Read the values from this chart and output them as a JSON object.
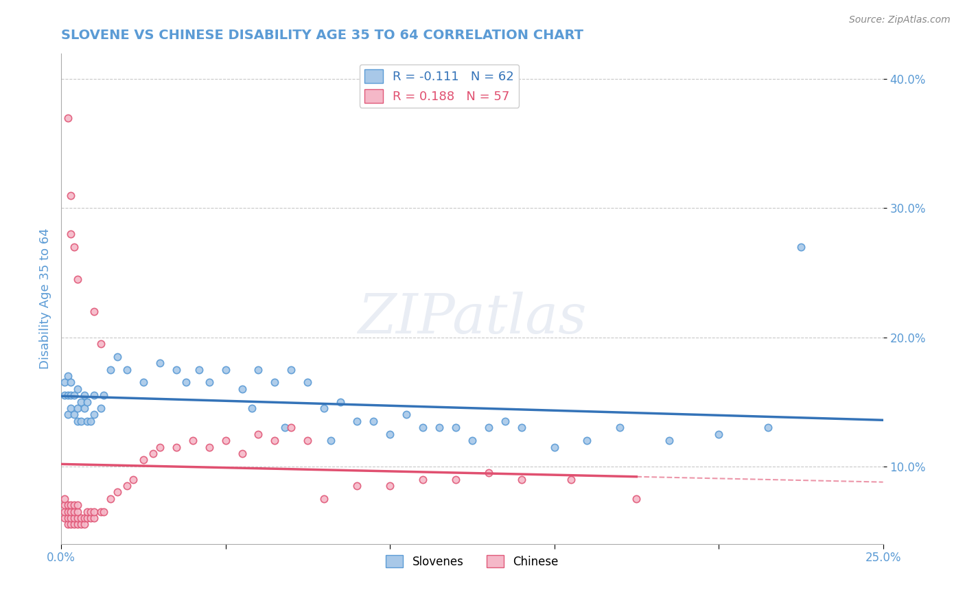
{
  "title": "SLOVENE VS CHINESE DISABILITY AGE 35 TO 64 CORRELATION CHART",
  "source": "Source: ZipAtlas.com",
  "ylabel": "Disability Age 35 to 64",
  "xlim": [
    0.0,
    0.25
  ],
  "ylim": [
    0.04,
    0.42
  ],
  "ytick_positions": [
    0.1,
    0.2,
    0.3,
    0.4
  ],
  "ytick_labels": [
    "10.0%",
    "20.0%",
    "30.0%",
    "40.0%"
  ],
  "slovene_color": "#a8c8e8",
  "slovene_edge_color": "#5b9bd5",
  "chinese_color": "#f5b8c8",
  "chinese_edge_color": "#e05878",
  "slovene_line_color": "#3473b8",
  "chinese_line_color": "#e05070",
  "r_slovene": -0.111,
  "n_slovene": 62,
  "r_chinese": 0.188,
  "n_chinese": 57,
  "legend_label_slovene": "Slovenes",
  "legend_label_chinese": "Chinese",
  "slovene_scatter_x": [
    0.001,
    0.001,
    0.002,
    0.002,
    0.002,
    0.003,
    0.003,
    0.003,
    0.004,
    0.004,
    0.005,
    0.005,
    0.005,
    0.006,
    0.006,
    0.007,
    0.007,
    0.008,
    0.008,
    0.009,
    0.01,
    0.01,
    0.012,
    0.013,
    0.015,
    0.017,
    0.02,
    0.025,
    0.03,
    0.035,
    0.038,
    0.042,
    0.045,
    0.05,
    0.055,
    0.058,
    0.06,
    0.065,
    0.068,
    0.07,
    0.075,
    0.08,
    0.082,
    0.085,
    0.09,
    0.095,
    0.1,
    0.105,
    0.11,
    0.115,
    0.12,
    0.125,
    0.13,
    0.135,
    0.14,
    0.15,
    0.16,
    0.17,
    0.185,
    0.2,
    0.215,
    0.225
  ],
  "slovene_scatter_y": [
    0.155,
    0.165,
    0.14,
    0.155,
    0.17,
    0.145,
    0.155,
    0.165,
    0.14,
    0.155,
    0.135,
    0.145,
    0.16,
    0.135,
    0.15,
    0.145,
    0.155,
    0.135,
    0.15,
    0.135,
    0.14,
    0.155,
    0.145,
    0.155,
    0.175,
    0.185,
    0.175,
    0.165,
    0.18,
    0.175,
    0.165,
    0.175,
    0.165,
    0.175,
    0.16,
    0.145,
    0.175,
    0.165,
    0.13,
    0.175,
    0.165,
    0.145,
    0.12,
    0.15,
    0.135,
    0.135,
    0.125,
    0.14,
    0.13,
    0.13,
    0.13,
    0.12,
    0.13,
    0.135,
    0.13,
    0.115,
    0.12,
    0.13,
    0.12,
    0.125,
    0.13,
    0.27
  ],
  "chinese_scatter_x": [
    0.001,
    0.001,
    0.001,
    0.001,
    0.002,
    0.002,
    0.002,
    0.002,
    0.003,
    0.003,
    0.003,
    0.003,
    0.004,
    0.004,
    0.004,
    0.004,
    0.005,
    0.005,
    0.005,
    0.005,
    0.006,
    0.006,
    0.007,
    0.007,
    0.008,
    0.008,
    0.009,
    0.009,
    0.01,
    0.01,
    0.012,
    0.013,
    0.015,
    0.017,
    0.02,
    0.022,
    0.025,
    0.028,
    0.03,
    0.035,
    0.04,
    0.045,
    0.05,
    0.055,
    0.06,
    0.065,
    0.07,
    0.075,
    0.08,
    0.09,
    0.1,
    0.11,
    0.12,
    0.13,
    0.14,
    0.155,
    0.175
  ],
  "chinese_scatter_y": [
    0.06,
    0.065,
    0.07,
    0.075,
    0.055,
    0.06,
    0.065,
    0.07,
    0.055,
    0.06,
    0.065,
    0.07,
    0.055,
    0.06,
    0.065,
    0.07,
    0.055,
    0.06,
    0.065,
    0.07,
    0.055,
    0.06,
    0.055,
    0.06,
    0.06,
    0.065,
    0.06,
    0.065,
    0.06,
    0.065,
    0.065,
    0.065,
    0.075,
    0.08,
    0.085,
    0.09,
    0.105,
    0.11,
    0.115,
    0.115,
    0.12,
    0.115,
    0.12,
    0.11,
    0.125,
    0.12,
    0.13,
    0.12,
    0.075,
    0.085,
    0.085,
    0.09,
    0.09,
    0.095,
    0.09,
    0.09,
    0.075
  ],
  "chinese_high_x": [
    0.002,
    0.003,
    0.003,
    0.004,
    0.005,
    0.01,
    0.012
  ],
  "chinese_high_y": [
    0.37,
    0.31,
    0.28,
    0.27,
    0.245,
    0.22,
    0.195
  ],
  "watermark_text": "ZIPatlas",
  "title_color": "#5b9bd5",
  "axis_label_color": "#5b9bd5",
  "tick_color": "#5b9bd5",
  "grid_color": "#c8c8c8",
  "background_color": "#ffffff"
}
